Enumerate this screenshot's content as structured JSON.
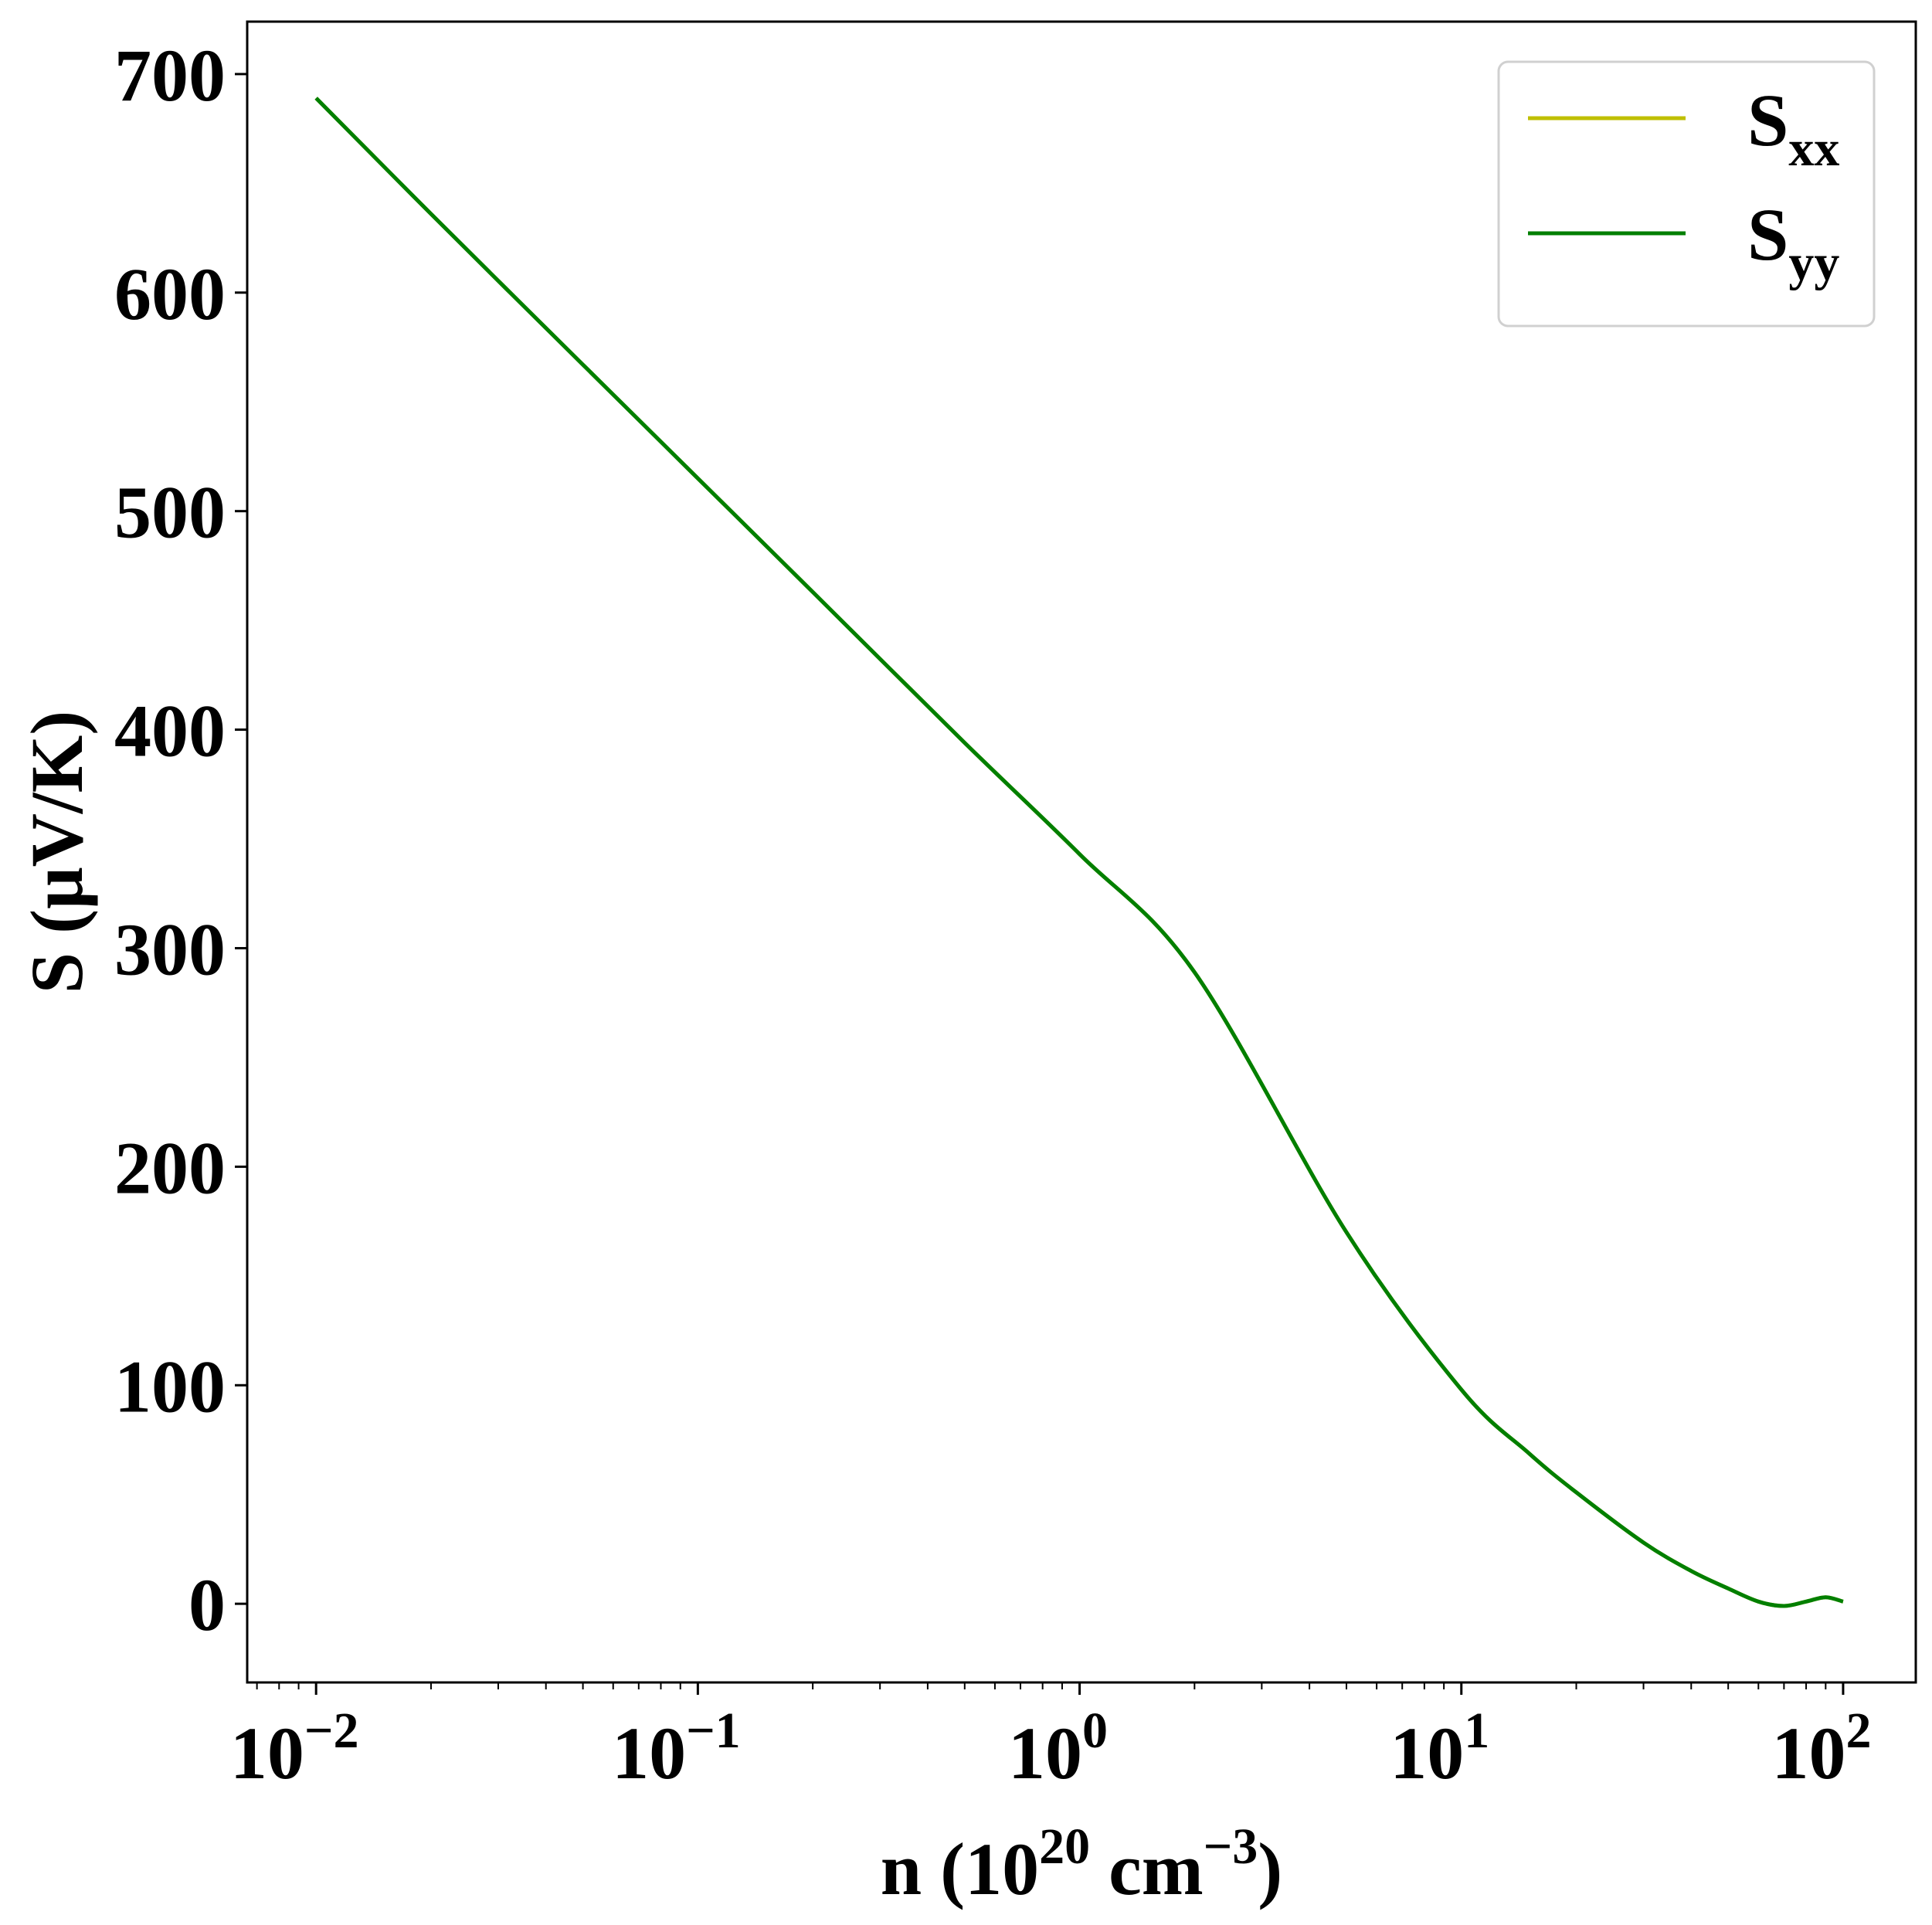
{
  "chart_data": {
    "type": "line",
    "xlabel": {
      "pre": "n (10",
      "sup1": "20",
      "mid": " cm",
      "sup2": "−3",
      "post": ")"
    },
    "ylabel": "S (μV/K)",
    "xscale": "log",
    "xlim": [
      0.0066,
      155
    ],
    "ylim": [
      -36,
      724
    ],
    "x_ticks": [
      {
        "value": 0.01,
        "base": "10",
        "exp": "−2"
      },
      {
        "value": 0.1,
        "base": "10",
        "exp": "−1"
      },
      {
        "value": 1,
        "base": "10",
        "exp": "0"
      },
      {
        "value": 10,
        "base": "10",
        "exp": "1"
      },
      {
        "value": 100,
        "base": "10",
        "exp": "2"
      }
    ],
    "y_ticks": [
      0,
      100,
      200,
      300,
      400,
      500,
      600,
      700
    ],
    "legend": {
      "placement": "top-right"
    },
    "grid": false,
    "series": [
      {
        "name": "S",
        "sub": "xx",
        "color": "#bfbf00",
        "x": [
          0.01,
          0.02,
          0.05,
          0.1,
          0.2,
          0.5,
          1,
          2,
          5,
          10,
          15,
          20,
          30,
          40,
          50,
          60,
          70,
          80,
          90,
          100
        ],
        "y": [
          689,
          636,
          567,
          515,
          463,
          394,
          343,
          289,
          170,
          98,
          69,
          51,
          28,
          15,
          7,
          1,
          -1,
          1,
          3,
          1
        ]
      },
      {
        "name": "S",
        "sub": "yy",
        "color": "#007f00",
        "x": [
          0.01,
          0.02,
          0.05,
          0.1,
          0.2,
          0.5,
          1,
          2,
          5,
          10,
          15,
          20,
          30,
          40,
          50,
          60,
          70,
          80,
          90,
          100
        ],
        "y": [
          689,
          636,
          567,
          515,
          463,
          394,
          343,
          289,
          170,
          98,
          69,
          51,
          28,
          15,
          7,
          1,
          -1,
          1,
          3,
          1
        ]
      }
    ]
  }
}
